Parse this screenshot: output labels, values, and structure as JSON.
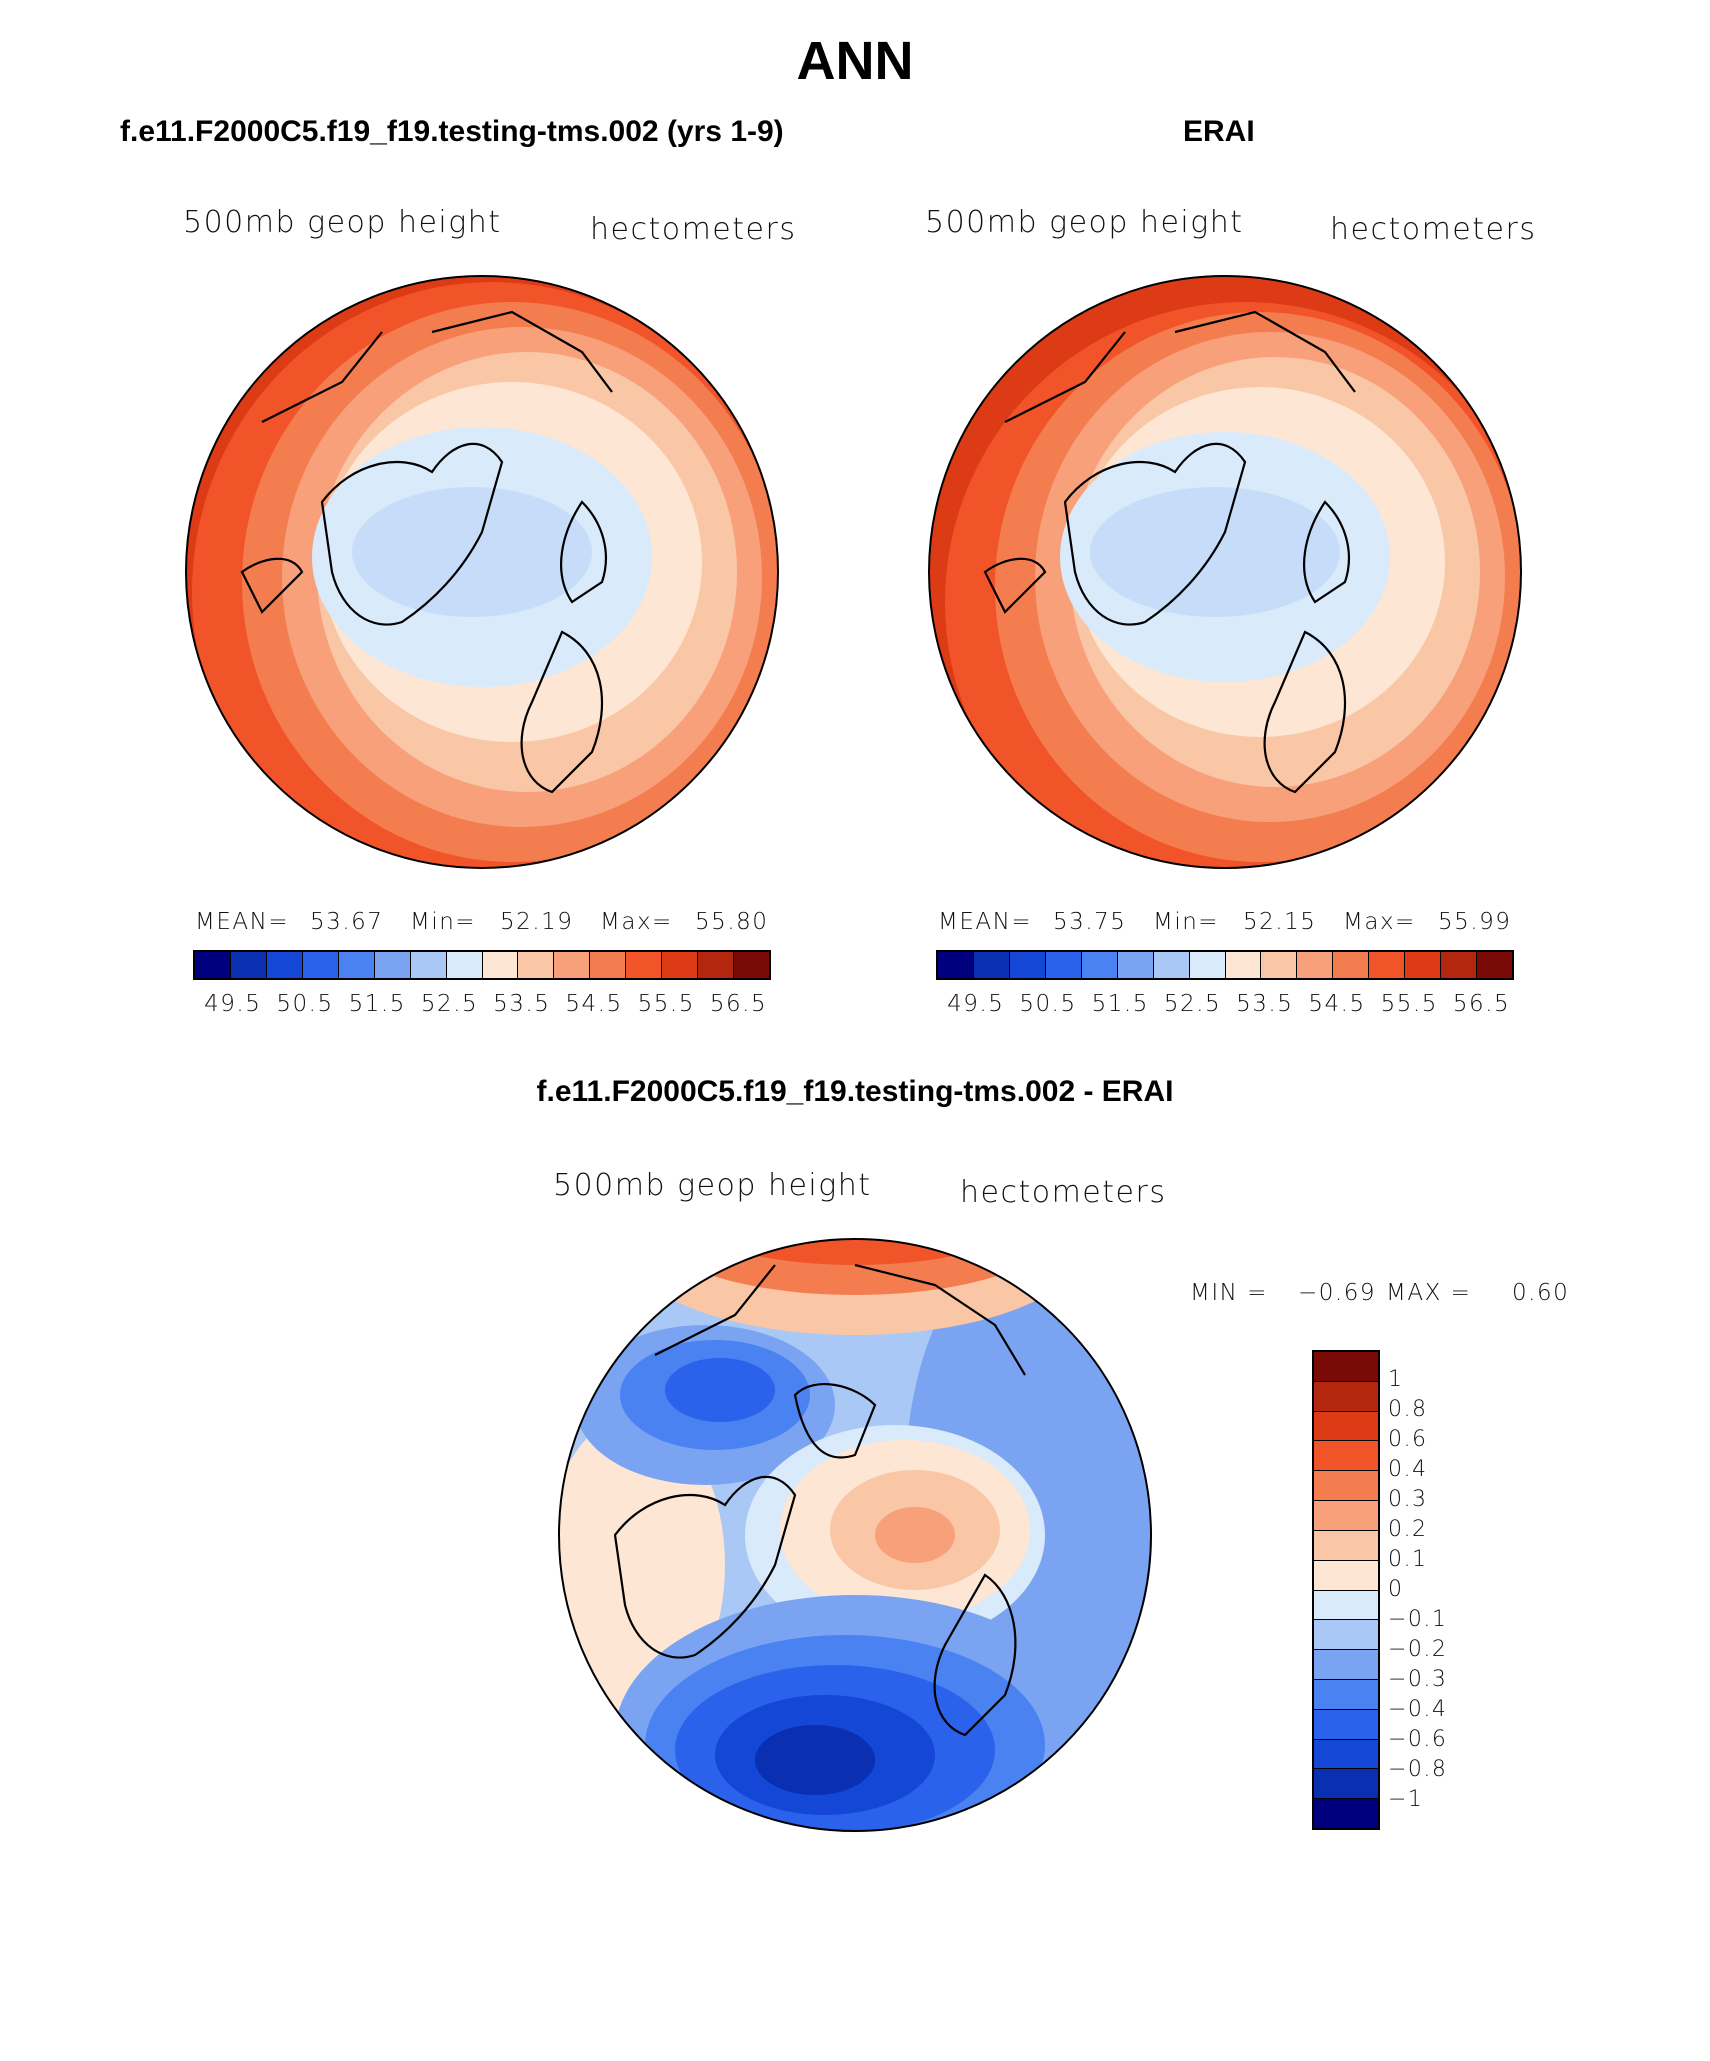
{
  "page": {
    "title": "ANN"
  },
  "chart_data": [
    {
      "type": "heatmap",
      "projection": "polar stereographic (North Pole)",
      "title": "f.e11.F2000C5.f19_f19.testing-tms.002 (yrs 1-9)",
      "variable_label": "500mb geop height",
      "units_label": "hectometers",
      "stats": {
        "mean_label": "MEAN=",
        "mean": "53.67",
        "min_label": "Min=",
        "min": "52.19",
        "max_label": "Max=",
        "max": "55.80"
      },
      "colorbar": {
        "orientation": "horizontal",
        "ticks": [
          "49.5",
          "50.5",
          "51.5",
          "52.5",
          "53.5",
          "54.5",
          "55.5",
          "56.5"
        ],
        "colors": [
          "#00007f",
          "#0a2fb0",
          "#1447d6",
          "#2a62ec",
          "#4a82f2",
          "#7aa4f2",
          "#aac8f5",
          "#d9eafb",
          "#fde6d3",
          "#f9c6a6",
          "#f7a07a",
          "#f47d50",
          "#f2542a",
          "#dc3b16",
          "#b4270f",
          "#7a0a05"
        ]
      },
      "field_levels": [
        {
          "color": "#c7dcf8"
        },
        {
          "color": "#d9eafb"
        },
        {
          "color": "#fde6d3"
        },
        {
          "color": "#f9c6a6"
        },
        {
          "color": "#f7a07a"
        },
        {
          "color": "#f47d50"
        },
        {
          "color": "#f2542a"
        }
      ]
    },
    {
      "type": "heatmap",
      "projection": "polar stereographic (North Pole)",
      "title": "ERAI",
      "variable_label": "500mb geop height",
      "units_label": "hectometers",
      "stats": {
        "mean_label": "MEAN=",
        "mean": "53.75",
        "min_label": "Min=",
        "min": "52.15",
        "max_label": "Max=",
        "max": "55.99"
      },
      "colorbar": {
        "orientation": "horizontal",
        "ticks": [
          "49.5",
          "50.5",
          "51.5",
          "52.5",
          "53.5",
          "54.5",
          "55.5",
          "56.5"
        ],
        "colors": [
          "#00007f",
          "#0a2fb0",
          "#1447d6",
          "#2a62ec",
          "#4a82f2",
          "#7aa4f2",
          "#aac8f5",
          "#d9eafb",
          "#fde6d3",
          "#f9c6a6",
          "#f7a07a",
          "#f47d50",
          "#f2542a",
          "#dc3b16",
          "#b4270f",
          "#7a0a05"
        ]
      },
      "field_levels": [
        {
          "color": "#c7dcf8"
        },
        {
          "color": "#d9eafb"
        },
        {
          "color": "#fde6d3"
        },
        {
          "color": "#f9c6a6"
        },
        {
          "color": "#f7a07a"
        },
        {
          "color": "#f47d50"
        },
        {
          "color": "#f2542a"
        },
        {
          "color": "#dc3b16"
        }
      ]
    },
    {
      "type": "heatmap",
      "projection": "polar stereographic (North Pole)",
      "title": "f.e11.F2000C5.f19_f19.testing-tms.002 - ERAI",
      "variable_label": "500mb geop height",
      "units_label": "hectometers",
      "stats": {
        "min_label": "MIN =",
        "min": "−0.69",
        "max_label": "MAX =",
        "max": "0.60"
      },
      "colorbar": {
        "orientation": "vertical",
        "ticks": [
          "1",
          "0.8",
          "0.6",
          "0.4",
          "0.3",
          "0.2",
          "0.1",
          "0",
          "−0.1",
          "−0.2",
          "−0.3",
          "−0.4",
          "−0.6",
          "−0.8",
          "−1"
        ],
        "colors": [
          "#7a0a05",
          "#b4270f",
          "#dc3b16",
          "#f2542a",
          "#f47d50",
          "#f7a07a",
          "#f9c6a6",
          "#fde6d3",
          "#d9eafb",
          "#aac8f5",
          "#7aa4f2",
          "#4a82f2",
          "#2a62ec",
          "#1447d6",
          "#0a2fb0",
          "#00007f"
        ]
      }
    }
  ]
}
